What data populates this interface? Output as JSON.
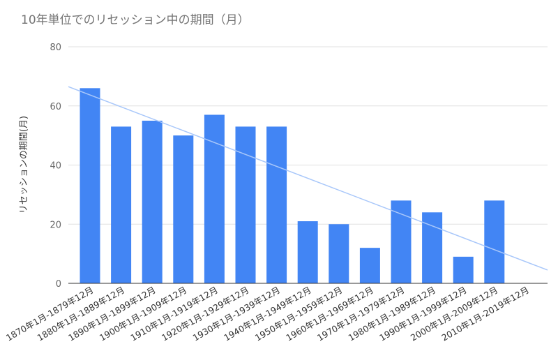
{
  "chart_data": {
    "type": "bar",
    "title": "10年単位でのリセッション中の期間（月）",
    "ylabel": "リセッションの期間(月)",
    "xlabel": "",
    "ylim": [
      0,
      80
    ],
    "yticks": [
      0,
      20,
      40,
      60,
      80
    ],
    "grid": true,
    "legend": "none",
    "categories": [
      "1870年1月-1879年12月",
      "1880年1月-1889年12月",
      "1890年1月-1899年12月",
      "1900年1月-1909年12月",
      "1910年1月-1919年12月",
      "1920年1月-1929年12月",
      "1930年1月-1939年12月",
      "1940年1月-1949年12月",
      "1950年1月-1959年12月",
      "1960年1月-1969年12月",
      "1970年1月-1979年12月",
      "1980年1月-1989年12月",
      "1990年1月-1999年12月",
      "2000年1月-2009年12月",
      "2010年1月-2019年12月"
    ],
    "values": [
      66,
      53,
      55,
      50,
      57,
      53,
      53,
      21,
      20,
      12,
      28,
      24,
      9,
      28,
      null
    ],
    "trendline": {
      "type": "linear",
      "start": 66.5,
      "end": 4.5
    },
    "colors": {
      "bar": "#4285f4",
      "trendline": "#a8c7fa",
      "grid": "#e0e0e0",
      "axis": "#333333"
    }
  }
}
